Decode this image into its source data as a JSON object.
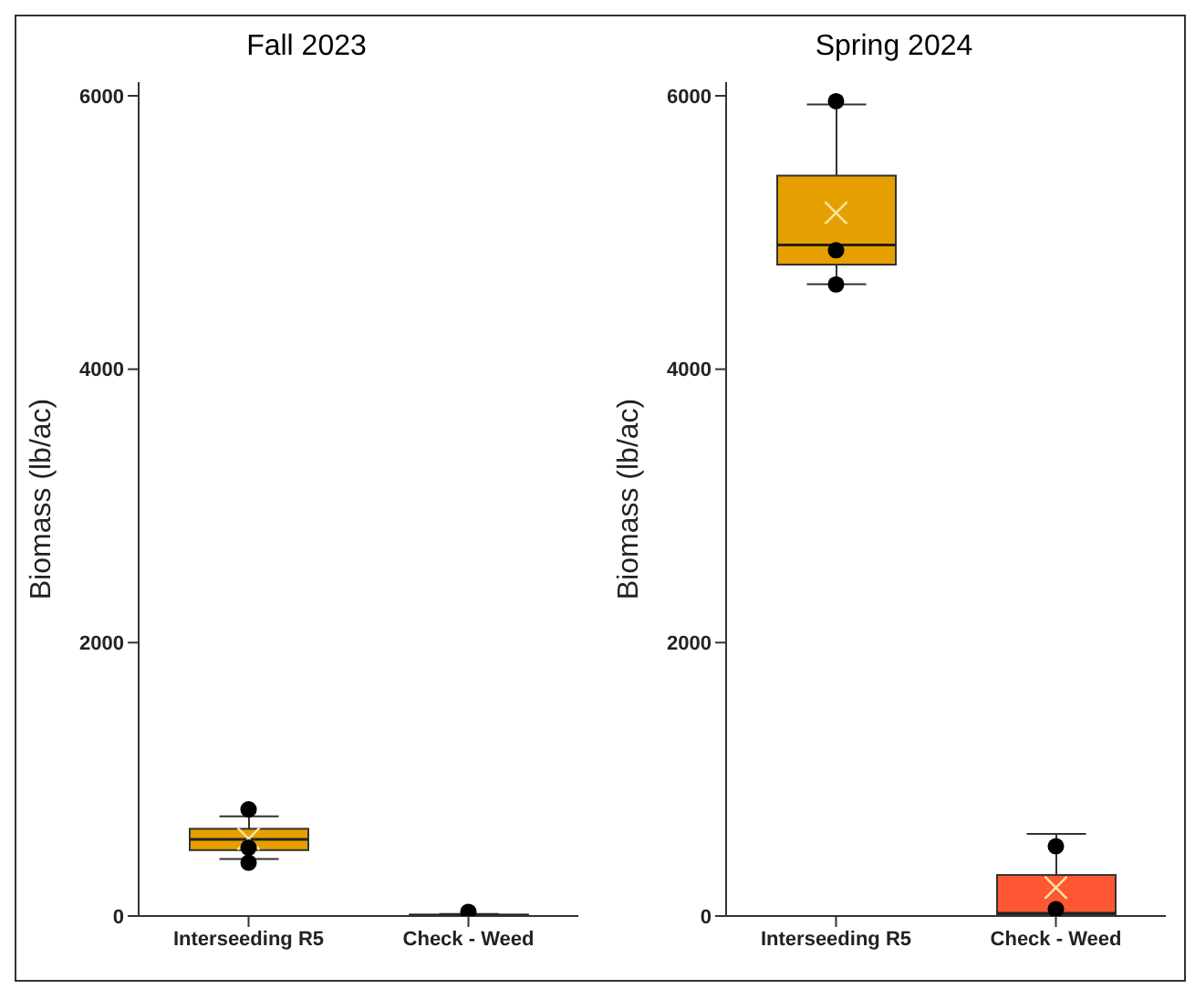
{
  "chart_data": [
    {
      "type": "box",
      "title": "Fall 2023",
      "ylabel": "Biomass (lb/ac)",
      "categories": [
        "Interseeding R5",
        "Check - Weed"
      ],
      "colors": [
        "#e69f00",
        "#ff5733"
      ],
      "ylim": [
        0,
        6100
      ],
      "yticks": [
        0,
        2000,
        4000,
        6000
      ],
      "legend": false,
      "boxes": [
        {
          "low": 417,
          "q1": 482,
          "median": 560,
          "q3": 638,
          "high": 729,
          "mean": 565
        },
        {
          "low": 0,
          "q1": 0,
          "median": 5,
          "q3": 10,
          "high": 15
        }
      ],
      "series": [
        {
          "type": "scatter",
          "color": "#000000",
          "x": [
            "Interseeding R5",
            "Interseeding R5",
            "Interseeding R5",
            "Check - Weed"
          ],
          "values": [
            780,
            500,
            390,
            30
          ]
        }
      ]
    },
    {
      "type": "box",
      "title": "Spring 2024",
      "ylabel": "Biomass (lb/ac)",
      "categories": [
        "Interseeding R5",
        "Check - Weed"
      ],
      "colors": [
        "#e69f00",
        "#ff5733"
      ],
      "ylim": [
        0,
        6100
      ],
      "yticks": [
        0,
        2000,
        4000,
        6000
      ],
      "legend": false,
      "boxes": [
        {
          "low": 4622,
          "q1": 4765,
          "median": 4909,
          "q3": 5416,
          "high": 5937,
          "mean": 5143
        },
        {
          "low": 0,
          "q1": 10,
          "median": 20,
          "q3": 300,
          "high": 600,
          "mean": 208
        }
      ],
      "series": [
        {
          "type": "scatter",
          "color": "#000000",
          "x": [
            "Interseeding R5",
            "Interseeding R5",
            "Interseeding R5",
            "Check - Weed",
            "Check - Weed"
          ],
          "values": [
            5960,
            4870,
            4620,
            510,
            50
          ]
        }
      ]
    }
  ]
}
